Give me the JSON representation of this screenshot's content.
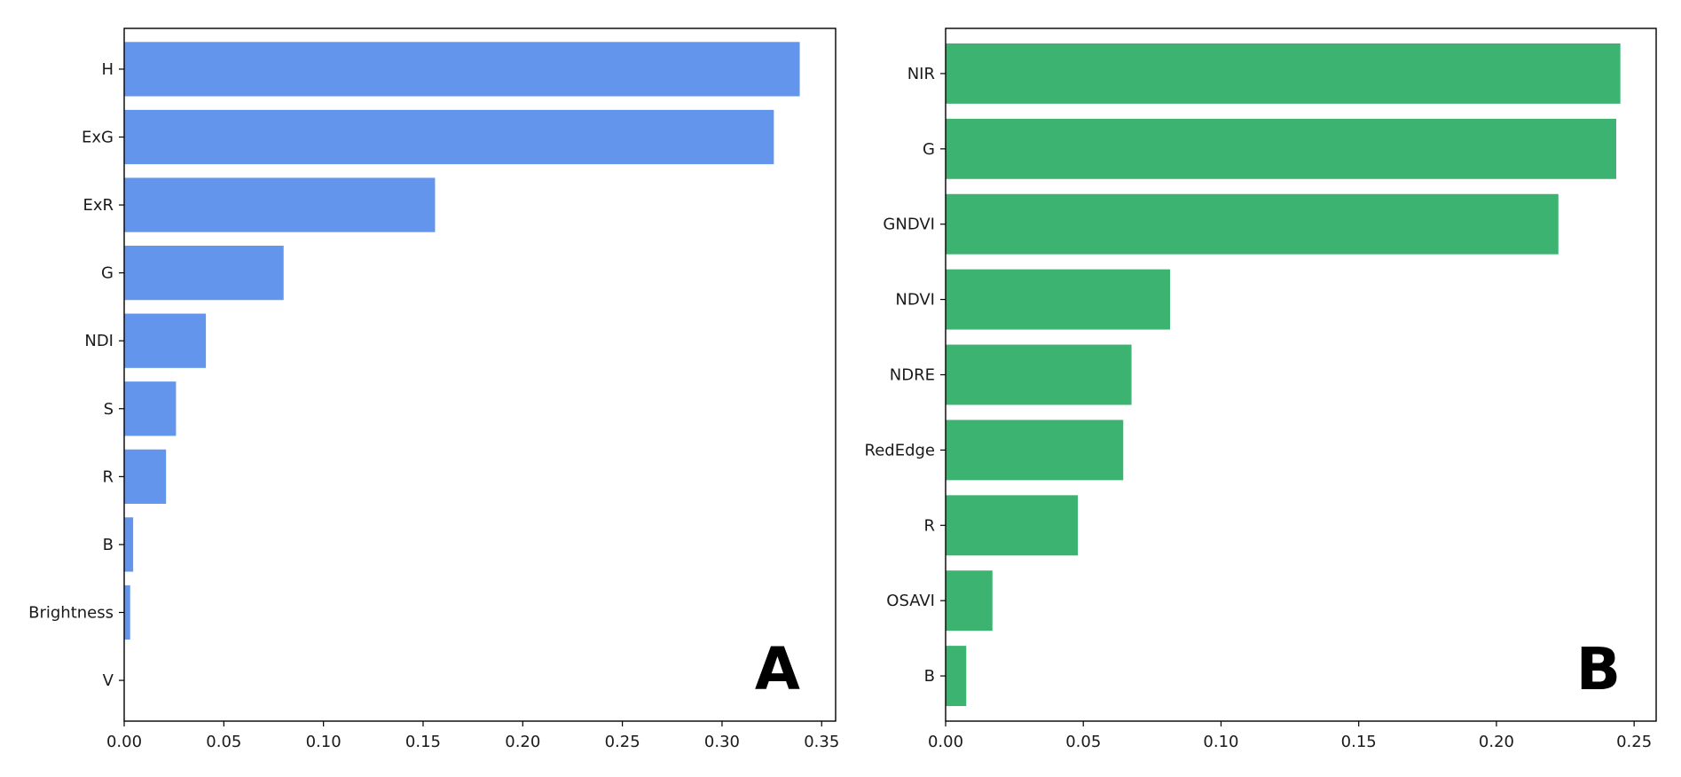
{
  "chart_data": [
    {
      "type": "bar",
      "orientation": "horizontal",
      "panel_label": "A",
      "title": "",
      "xlabel": "",
      "ylabel": "",
      "categories": [
        "H",
        "ExG",
        "ExR",
        "G",
        "NDI",
        "S",
        "R",
        "B",
        "Brightness",
        "V"
      ],
      "values": [
        0.339,
        0.326,
        0.156,
        0.08,
        0.041,
        0.026,
        0.021,
        0.0045,
        0.003,
        0.0
      ],
      "xlim": [
        0,
        0.357
      ],
      "xticks": [
        "0.00",
        "0.05",
        "0.10",
        "0.15",
        "0.20",
        "0.25",
        "0.30",
        "0.35"
      ],
      "bar_color": "#6495ED",
      "grid": false
    },
    {
      "type": "bar",
      "orientation": "horizontal",
      "panel_label": "B",
      "title": "",
      "xlabel": "",
      "ylabel": "",
      "categories": [
        "NIR",
        "G",
        "GNDVI",
        "NDVI",
        "NDRE",
        "RedEdge",
        "R",
        "OSAVI",
        "B"
      ],
      "values": [
        0.245,
        0.2435,
        0.2225,
        0.0815,
        0.0675,
        0.0645,
        0.048,
        0.017,
        0.0075
      ],
      "xlim": [
        0,
        0.258
      ],
      "xticks": [
        "0.00",
        "0.05",
        "0.10",
        "0.15",
        "0.20",
        "0.25"
      ],
      "bar_color": "#3CB371",
      "grid": false
    }
  ]
}
